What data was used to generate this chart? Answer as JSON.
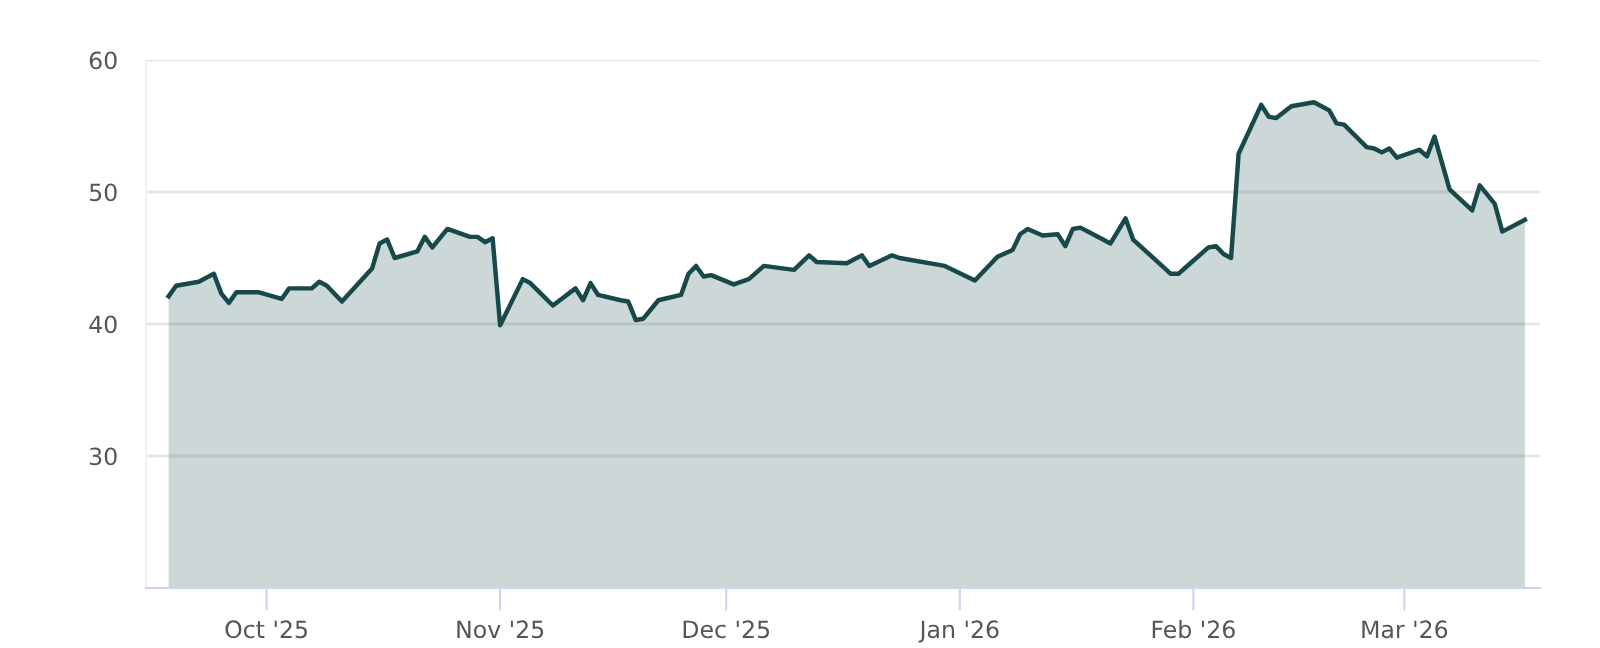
{
  "chart_data": {
    "type": "area",
    "x": [
      "2025-09-18",
      "2025-09-19",
      "2025-09-22",
      "2025-09-24",
      "2025-09-25",
      "2025-09-26",
      "2025-09-27",
      "2025-09-30",
      "2025-10-03",
      "2025-10-04",
      "2025-10-07",
      "2025-10-08",
      "2025-10-09",
      "2025-10-11",
      "2025-10-15",
      "2025-10-16",
      "2025-10-17",
      "2025-10-18",
      "2025-10-21",
      "2025-10-22",
      "2025-10-23",
      "2025-10-25",
      "2025-10-28",
      "2025-10-29",
      "2025-10-30",
      "2025-10-31",
      "2025-11-01",
      "2025-11-04",
      "2025-11-05",
      "2025-11-08",
      "2025-11-11",
      "2025-11-12",
      "2025-11-13",
      "2025-11-14",
      "2025-11-17",
      "2025-11-18",
      "2025-11-19",
      "2025-11-20",
      "2025-11-22",
      "2025-11-25",
      "2025-11-26",
      "2025-11-27",
      "2025-11-28",
      "2025-11-29",
      "2025-12-02",
      "2025-12-04",
      "2025-12-06",
      "2025-12-10",
      "2025-12-12",
      "2025-12-13",
      "2025-12-17",
      "2025-12-19",
      "2025-12-20",
      "2025-12-23",
      "2025-12-24",
      "2025-12-30",
      "2026-01-03",
      "2026-01-06",
      "2026-01-08",
      "2026-01-09",
      "2026-01-10",
      "2026-01-12",
      "2026-01-14",
      "2026-01-15",
      "2026-01-16",
      "2026-01-17",
      "2026-01-19",
      "2026-01-21",
      "2026-01-23",
      "2026-01-24",
      "2026-01-29",
      "2026-01-30",
      "2026-01-31",
      "2026-02-03",
      "2026-02-04",
      "2026-02-05",
      "2026-02-06",
      "2026-02-07",
      "2026-02-10",
      "2026-02-11",
      "2026-02-12",
      "2026-02-14",
      "2026-02-17",
      "2026-02-19",
      "2026-02-20",
      "2026-02-21",
      "2026-02-24",
      "2026-02-25",
      "2026-02-26",
      "2026-02-27",
      "2026-02-28",
      "2026-03-03",
      "2026-03-04",
      "2026-03-05",
      "2026-03-07",
      "2026-03-10",
      "2026-03-11",
      "2026-03-13",
      "2026-03-14",
      "2026-03-17"
    ],
    "series": [
      {
        "color": "#17494a",
        "values": [
          42.1,
          42.9,
          43.2,
          43.8,
          42.3,
          41.6,
          42.4,
          42.4,
          41.9,
          42.7,
          42.7,
          43.2,
          42.9,
          41.7,
          44.2,
          46.1,
          46.4,
          45.0,
          45.5,
          46.6,
          45.8,
          47.2,
          46.6,
          46.6,
          46.2,
          46.5,
          39.9,
          43.4,
          43.1,
          41.4,
          42.7,
          41.8,
          43.1,
          42.2,
          41.8,
          41.7,
          40.3,
          40.4,
          41.8,
          42.2,
          43.8,
          44.4,
          43.6,
          43.7,
          43.0,
          43.4,
          44.4,
          44.1,
          45.2,
          44.7,
          44.6,
          45.2,
          44.4,
          45.2,
          45.0,
          44.4,
          43.3,
          45.1,
          45.6,
          46.8,
          47.2,
          46.7,
          46.8,
          45.9,
          47.2,
          47.3,
          46.7,
          46.1,
          48.0,
          46.4,
          43.8,
          43.8,
          44.3,
          45.8,
          45.9,
          45.3,
          45.0,
          52.9,
          56.6,
          55.7,
          55.6,
          56.5,
          56.8,
          56.2,
          55.2,
          55.1,
          53.4,
          53.3,
          53.0,
          53.3,
          52.6,
          53.2,
          52.7,
          54.2,
          50.2,
          48.6,
          50.5,
          49.1,
          47.0,
          47.9
        ]
      }
    ],
    "xlim": [
      "2025-09-15",
      "2026-03-19"
    ],
    "xticks": [
      {
        "value": "2025-10-01",
        "label": "Oct '25"
      },
      {
        "value": "2025-11-01",
        "label": "Nov '25"
      },
      {
        "value": "2025-12-01",
        "label": "Dec '25"
      },
      {
        "value": "2026-01-01",
        "label": "Jan '26"
      },
      {
        "value": "2026-02-01",
        "label": "Feb '26"
      },
      {
        "value": "2026-03-01",
        "label": "Mar '26"
      }
    ],
    "ylim": [
      20,
      60
    ],
    "yticks": [
      30,
      40,
      50,
      60
    ],
    "grid": "y",
    "legend": false
  }
}
